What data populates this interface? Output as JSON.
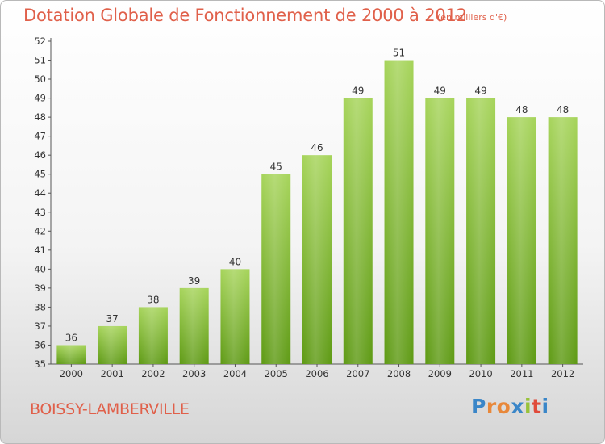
{
  "header": {
    "title": "Dotation Globale de Fonctionnement de 2000 à 2012",
    "unit": "(en milliers d'€)"
  },
  "footer": {
    "commune": "BOISSY-LAMBERVILLE",
    "logo": {
      "letters": [
        "P",
        "r",
        "o",
        "x",
        "i",
        "t",
        "i"
      ],
      "colors": [
        "#3a86c8",
        "#e8883a",
        "#e8883a",
        "#3a86c8",
        "#98c23a",
        "#e04a3a",
        "#3a86c8"
      ]
    }
  },
  "colors": {
    "bar_top": "#a6d45a",
    "bar_bottom": "#5e9a14",
    "text": "#333333",
    "accent": "#e0604a"
  },
  "chart_data": {
    "type": "bar",
    "categories": [
      "2000",
      "2001",
      "2002",
      "2003",
      "2004",
      "2005",
      "2006",
      "2007",
      "2008",
      "2009",
      "2010",
      "2011",
      "2012"
    ],
    "values": [
      36,
      37,
      38,
      39,
      40,
      45,
      46,
      49,
      51,
      49,
      49,
      48,
      48
    ],
    "data_labels": [
      "36",
      "37",
      "38",
      "39",
      "40",
      "45",
      "46",
      "49",
      "51",
      "49",
      "49",
      "48",
      "48"
    ],
    "ylim": [
      35,
      52
    ],
    "yticks": [
      "35",
      "36",
      "37",
      "38",
      "39",
      "40",
      "41",
      "42",
      "43",
      "44",
      "45",
      "46",
      "47",
      "48",
      "49",
      "50",
      "51",
      "52"
    ],
    "grid": false
  }
}
